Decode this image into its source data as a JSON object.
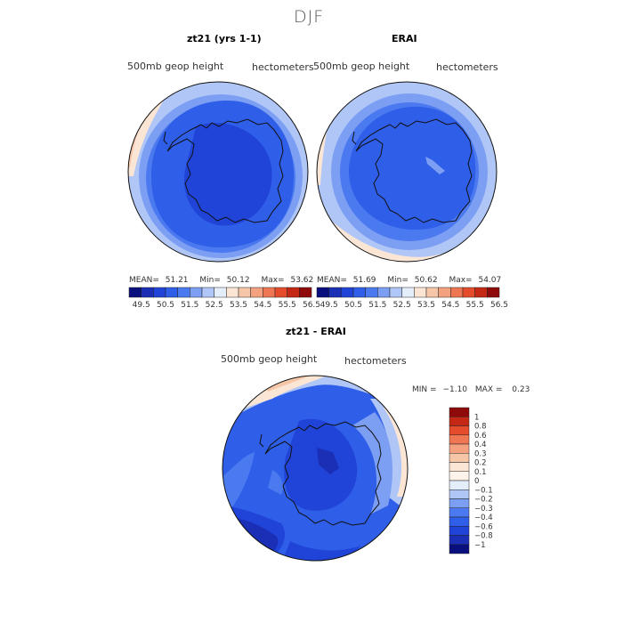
{
  "season": "DJF",
  "panels": [
    {
      "title": "zt21 (yrs 1-1)",
      "variable": "500mb geop height",
      "units": "hectometers",
      "stats": {
        "mean_label": "MEAN=",
        "mean": "51.21",
        "min_label": "Min=",
        "min": "50.12",
        "max_label": "Max=",
        "max": "53.62"
      }
    },
    {
      "title": "ERAI",
      "variable": "500mb geop height",
      "units": "hectometers",
      "stats": {
        "mean_label": "MEAN=",
        "mean": "51.69",
        "min_label": "Min=",
        "min": "50.62",
        "max_label": "Max=",
        "max": "54.07"
      }
    }
  ],
  "field_colorbar": {
    "labels": [
      "49.5",
      "50.5",
      "51.5",
      "52.5",
      "53.5",
      "54.5",
      "55.5",
      "56.5"
    ],
    "colors": [
      "#0a0f7e",
      "#1a2fb6",
      "#2144d8",
      "#2f5ee8",
      "#4b7af0",
      "#7d9ff3",
      "#afc6f6",
      "#e4eefb",
      "#fbe6d6",
      "#f6c6a9",
      "#f3a17e",
      "#ee7652",
      "#e44c2c",
      "#c42916",
      "#8f0a0a"
    ]
  },
  "diff_panel": {
    "title": "zt21 - ERAI",
    "variable": "500mb geop height",
    "units": "hectometers",
    "stats": {
      "min_label": "MIN =",
      "min": "−1.10",
      "max_label": "MAX =",
      "max": "0.23"
    }
  },
  "diff_colorbar": {
    "labels": [
      "1",
      "0.8",
      "0.6",
      "0.4",
      "0.3",
      "0.2",
      "0.1",
      "0",
      "−0.1",
      "−0.2",
      "−0.3",
      "−0.4",
      "−0.6",
      "−0.8",
      "−1"
    ],
    "colors": [
      "#8f0a0a",
      "#c42916",
      "#e44c2c",
      "#ee7652",
      "#f3a17e",
      "#f6c6a9",
      "#fbe6d6",
      "#fdf3ea",
      "#e4eefb",
      "#afc6f6",
      "#7d9ff3",
      "#4b7af0",
      "#2f5ee8",
      "#2144d8",
      "#1a2fb6",
      "#0a0f7e"
    ]
  }
}
